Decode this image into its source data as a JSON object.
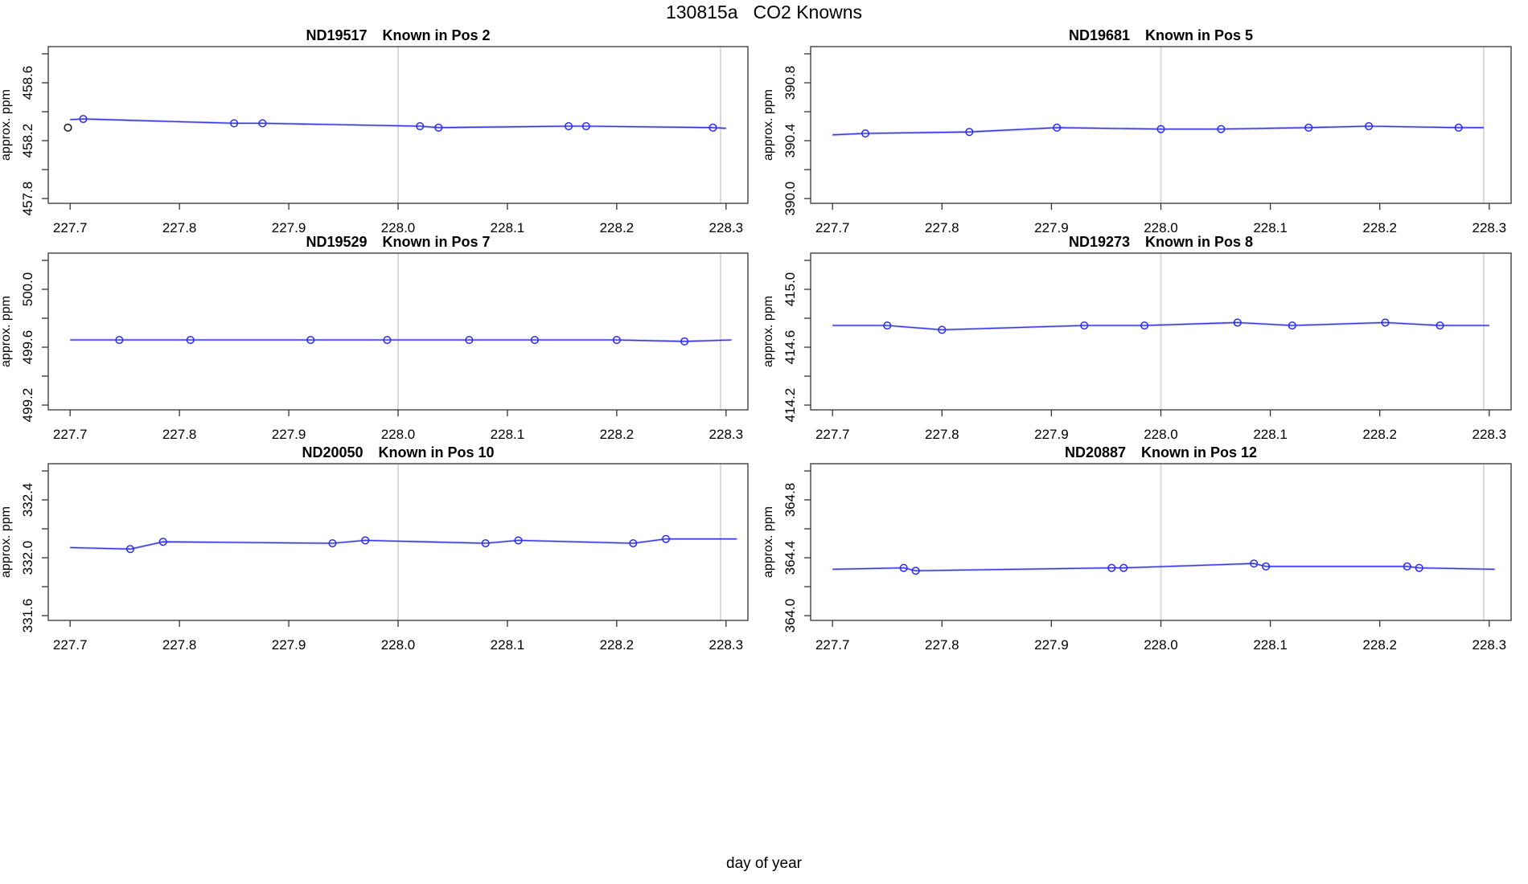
{
  "header": {
    "run_id": "130815a",
    "title": "CO2 Knowns"
  },
  "footer": {
    "xlabel": "day of year"
  },
  "axis": {
    "ylabel": "approx. ppm"
  },
  "colors": {
    "line": "#3434ea",
    "halo": "#8c8cf0",
    "marker": "#2d2de0",
    "outlier": "#222222",
    "grid": "#d9d9d9",
    "frame": "#333333",
    "text": "#000000",
    "background": "#ffffff"
  },
  "chart_data": [
    {
      "type": "line",
      "id": "ND19517",
      "subtitle": "Known in Pos 2",
      "ylabel": "approx. ppm",
      "xlim": [
        227.68,
        228.32
      ],
      "x_ticks": [
        227.7,
        227.8,
        227.9,
        228.0,
        228.1,
        228.2,
        228.3
      ],
      "y_tick_start": 457.8,
      "y_tick_step": 0.2,
      "y_tick_count": 6,
      "y_labeled_ticks": [
        457.8,
        458.2,
        458.6
      ],
      "ylim": [
        457.767,
        458.85
      ],
      "vlines": [
        228.0,
        228.295
      ],
      "line": [
        [
          227.7,
          458.345
        ],
        [
          227.712,
          458.35
        ],
        [
          227.85,
          458.32
        ],
        [
          227.876,
          458.32
        ],
        [
          228.02,
          458.3
        ],
        [
          228.037,
          458.29
        ],
        [
          228.156,
          458.3
        ],
        [
          228.172,
          458.3
        ],
        [
          228.288,
          458.29
        ],
        [
          228.3,
          458.285
        ]
      ],
      "points": [
        [
          227.712,
          458.35
        ],
        [
          227.85,
          458.32
        ],
        [
          227.876,
          458.32
        ],
        [
          228.02,
          458.3
        ],
        [
          228.037,
          458.29
        ],
        [
          228.156,
          458.3
        ],
        [
          228.172,
          458.3
        ],
        [
          228.288,
          458.29
        ]
      ],
      "extra_points": [
        {
          "x": 227.698,
          "y": 458.29,
          "color": "outlier"
        }
      ]
    },
    {
      "type": "line",
      "id": "ND19681",
      "subtitle": "Known in Pos 5",
      "ylabel": "approx. ppm",
      "xlim": [
        227.68,
        228.32
      ],
      "x_ticks": [
        227.7,
        227.8,
        227.9,
        228.0,
        228.1,
        228.2,
        228.3
      ],
      "y_tick_start": 390.0,
      "y_tick_step": 0.2,
      "y_tick_count": 6,
      "y_labeled_ticks": [
        390.0,
        390.4,
        390.8
      ],
      "ylim": [
        389.967,
        391.05
      ],
      "vlines": [
        228.0,
        228.295
      ],
      "line": [
        [
          227.7,
          390.44
        ],
        [
          227.73,
          390.45
        ],
        [
          227.825,
          390.46
        ],
        [
          227.905,
          390.49
        ],
        [
          228.0,
          390.48
        ],
        [
          228.055,
          390.48
        ],
        [
          228.135,
          390.49
        ],
        [
          228.19,
          390.5
        ],
        [
          228.272,
          390.49
        ],
        [
          228.295,
          390.49
        ]
      ],
      "points": [
        [
          227.73,
          390.45
        ],
        [
          227.825,
          390.46
        ],
        [
          227.905,
          390.49
        ],
        [
          228.0,
          390.48
        ],
        [
          228.055,
          390.48
        ],
        [
          228.135,
          390.49
        ],
        [
          228.19,
          390.5
        ],
        [
          228.272,
          390.49
        ]
      ],
      "extra_points": []
    },
    {
      "type": "line",
      "id": "ND19529",
      "subtitle": "Known in Pos 7",
      "ylabel": "approx. ppm",
      "xlim": [
        227.68,
        228.32
      ],
      "x_ticks": [
        227.7,
        227.8,
        227.9,
        228.0,
        228.1,
        228.2,
        228.3
      ],
      "y_tick_start": 499.2,
      "y_tick_step": 0.2,
      "y_tick_count": 6,
      "y_labeled_ticks": [
        499.2,
        499.6,
        500.0
      ],
      "ylim": [
        499.167,
        500.25
      ],
      "vlines": [
        228.0,
        228.295
      ],
      "line": [
        [
          227.7,
          499.65
        ],
        [
          227.745,
          499.65
        ],
        [
          227.81,
          499.65
        ],
        [
          227.92,
          499.65
        ],
        [
          227.99,
          499.65
        ],
        [
          228.065,
          499.65
        ],
        [
          228.125,
          499.65
        ],
        [
          228.2,
          499.65
        ],
        [
          228.262,
          499.64
        ],
        [
          228.305,
          499.65
        ]
      ],
      "points": [
        [
          227.745,
          499.65
        ],
        [
          227.81,
          499.65
        ],
        [
          227.92,
          499.65
        ],
        [
          227.99,
          499.65
        ],
        [
          228.065,
          499.65
        ],
        [
          228.125,
          499.65
        ],
        [
          228.2,
          499.65
        ],
        [
          228.262,
          499.64
        ]
      ],
      "extra_points": []
    },
    {
      "type": "line",
      "id": "ND19273",
      "subtitle": "Known in Pos 8",
      "ylabel": "approx. ppm",
      "xlim": [
        227.68,
        228.32
      ],
      "x_ticks": [
        227.7,
        227.8,
        227.9,
        228.0,
        228.1,
        228.2,
        228.3
      ],
      "y_tick_start": 414.2,
      "y_tick_step": 0.2,
      "y_tick_count": 6,
      "y_labeled_ticks": [
        414.2,
        414.6,
        415.0
      ],
      "ylim": [
        414.167,
        415.25
      ],
      "vlines": [
        228.0,
        228.295
      ],
      "line": [
        [
          227.7,
          414.75
        ],
        [
          227.75,
          414.75
        ],
        [
          227.8,
          414.72
        ],
        [
          227.93,
          414.75
        ],
        [
          227.985,
          414.75
        ],
        [
          228.07,
          414.77
        ],
        [
          228.12,
          414.75
        ],
        [
          228.205,
          414.77
        ],
        [
          228.255,
          414.75
        ],
        [
          228.3,
          414.75
        ]
      ],
      "points": [
        [
          227.75,
          414.75
        ],
        [
          227.8,
          414.72
        ],
        [
          227.93,
          414.75
        ],
        [
          227.985,
          414.75
        ],
        [
          228.07,
          414.77
        ],
        [
          228.12,
          414.75
        ],
        [
          228.205,
          414.77
        ],
        [
          228.255,
          414.75
        ]
      ],
      "extra_points": []
    },
    {
      "type": "line",
      "id": "ND20050",
      "subtitle": "Known in Pos 10",
      "ylabel": "approx. ppm",
      "xlim": [
        227.68,
        228.32
      ],
      "x_ticks": [
        227.7,
        227.8,
        227.9,
        228.0,
        228.1,
        228.2,
        228.3
      ],
      "y_tick_start": 331.6,
      "y_tick_step": 0.2,
      "y_tick_count": 6,
      "y_labeled_ticks": [
        331.6,
        332.0,
        332.4
      ],
      "ylim": [
        331.567,
        332.65
      ],
      "vlines": [
        228.0,
        228.295
      ],
      "line": [
        [
          227.7,
          332.07
        ],
        [
          227.755,
          332.06
        ],
        [
          227.785,
          332.11
        ],
        [
          227.94,
          332.1
        ],
        [
          227.97,
          332.12
        ],
        [
          228.08,
          332.1
        ],
        [
          228.11,
          332.12
        ],
        [
          228.215,
          332.1
        ],
        [
          228.245,
          332.13
        ],
        [
          228.31,
          332.13
        ]
      ],
      "points": [
        [
          227.755,
          332.06
        ],
        [
          227.785,
          332.11
        ],
        [
          227.94,
          332.1
        ],
        [
          227.97,
          332.12
        ],
        [
          228.08,
          332.1
        ],
        [
          228.11,
          332.12
        ],
        [
          228.215,
          332.1
        ],
        [
          228.245,
          332.13
        ]
      ],
      "extra_points": []
    },
    {
      "type": "line",
      "id": "ND20887",
      "subtitle": "Known in Pos 12",
      "ylabel": "approx. ppm",
      "xlim": [
        227.68,
        228.32
      ],
      "x_ticks": [
        227.7,
        227.8,
        227.9,
        228.0,
        228.1,
        228.2,
        228.3
      ],
      "y_tick_start": 364.0,
      "y_tick_step": 0.2,
      "y_tick_count": 6,
      "y_labeled_ticks": [
        364.0,
        364.4,
        364.8
      ],
      "ylim": [
        363.967,
        365.05
      ],
      "vlines": [
        228.0,
        228.295
      ],
      "line": [
        [
          227.7,
          364.32
        ],
        [
          227.765,
          364.33
        ],
        [
          227.776,
          364.31
        ],
        [
          227.955,
          364.33
        ],
        [
          227.966,
          364.33
        ],
        [
          228.085,
          364.36
        ],
        [
          228.096,
          364.34
        ],
        [
          228.225,
          364.34
        ],
        [
          228.236,
          364.33
        ],
        [
          228.305,
          364.32
        ]
      ],
      "points": [
        [
          227.765,
          364.33
        ],
        [
          227.776,
          364.31
        ],
        [
          227.955,
          364.33
        ],
        [
          227.966,
          364.33
        ],
        [
          228.085,
          364.36
        ],
        [
          228.096,
          364.34
        ],
        [
          228.225,
          364.34
        ],
        [
          228.236,
          364.33
        ]
      ],
      "extra_points": []
    }
  ]
}
